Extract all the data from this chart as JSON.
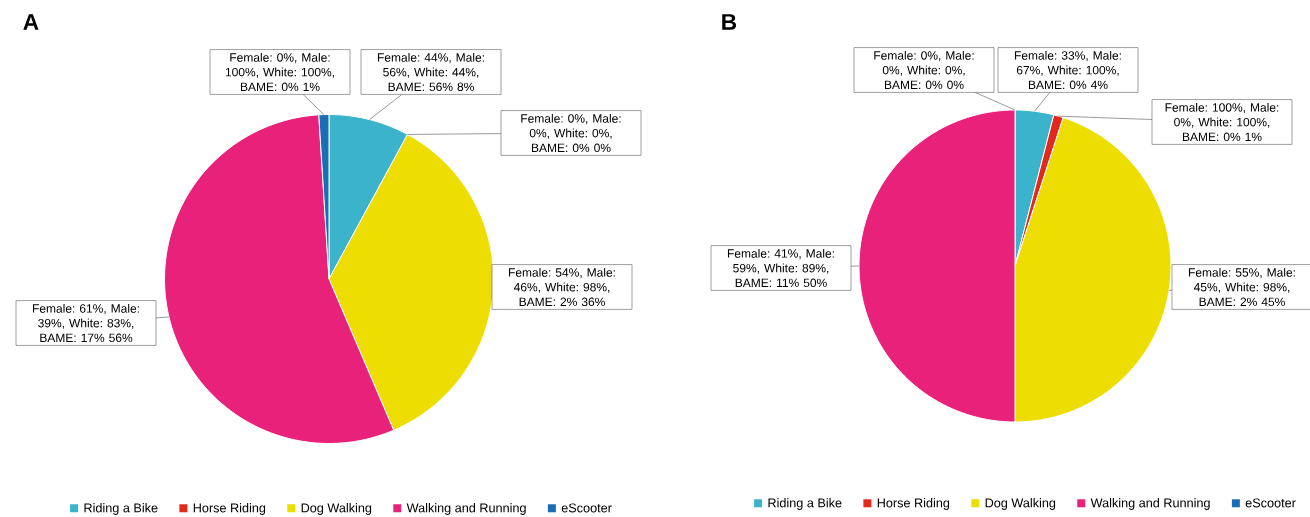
{
  "chart_data": [
    {
      "type": "pie",
      "title": "A",
      "categories": [
        "Riding a Bike",
        "Horse Riding",
        "Dog Walking",
        "Walking and Running",
        "eScooter"
      ],
      "values": [
        8,
        0,
        36,
        56,
        1
      ],
      "colors": [
        "#3bb3cb",
        "#e3281e",
        "#eedd00",
        "#e8217a",
        "#1a6eb5"
      ],
      "value_labels": [
        "Female: 44%, Male: 56%, White: 44%, BAME: 56% 8%",
        "Female: 0%, Male: 0%, White: 0%, BAME: 0% 0%",
        "Female: 54%, Male: 46%, White: 98%, BAME: 2% 36%",
        "Female: 61%, Male: 39%, White: 83%, BAME: 17% 56%",
        "Female: 0%, Male: 100%, White: 100%, BAME: 0% 1%"
      ],
      "legend": "bottom"
    },
    {
      "type": "pie",
      "title": "B",
      "categories": [
        "Riding a Bike",
        "Horse Riding",
        "Dog Walking",
        "Walking and Running",
        "eScooter"
      ],
      "values": [
        4,
        1,
        45,
        50,
        0
      ],
      "colors": [
        "#3bb3cb",
        "#e3281e",
        "#eedd00",
        "#e8217a",
        "#1a6eb5"
      ],
      "value_labels": [
        "Female: 33%, Male: 67%, White: 100%, BAME: 0% 4%",
        "Female: 100%, Male: 0%, White: 100%, BAME: 0% 1%",
        "Female: 55%, Male: 45%, White: 98%, BAME: 2% 45%",
        "Female: 41%, Male: 59%, White: 89%, BAME: 11% 50%",
        "Female: 0%, Male: 0%, White: 0%, BAME: 0% 0%"
      ],
      "legend": "bottom"
    }
  ]
}
